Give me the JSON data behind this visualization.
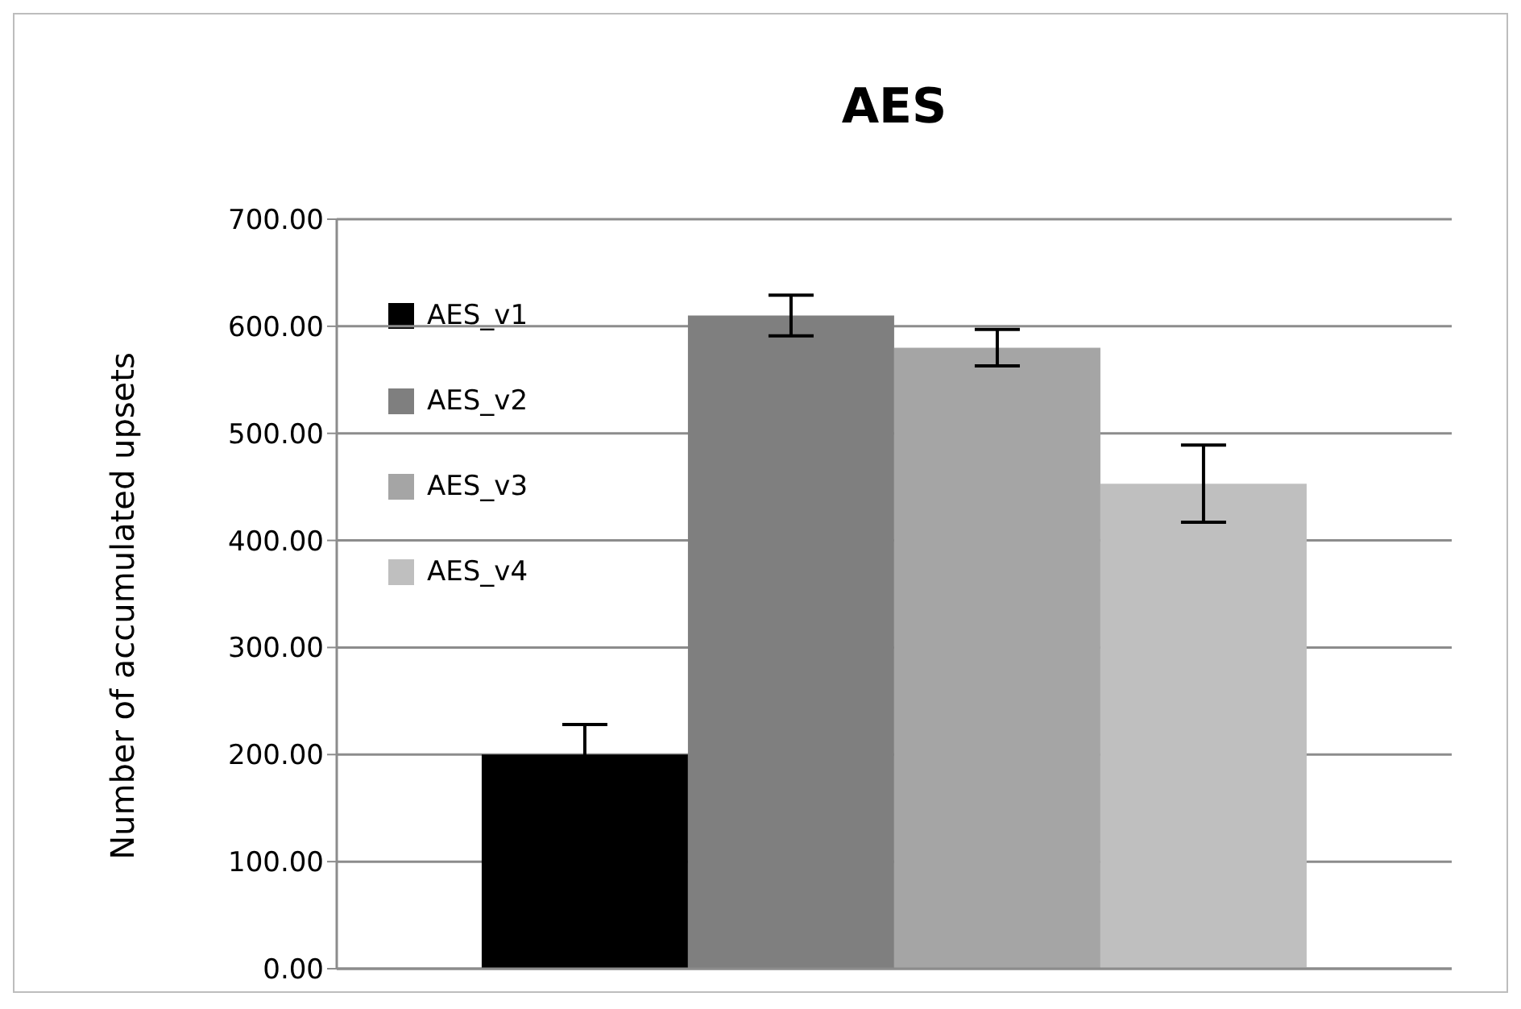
{
  "chart_data": {
    "type": "bar",
    "title": "AES",
    "ylabel": "Number of accumulated upsets",
    "categories": [
      null
    ],
    "series": [
      {
        "name": "AES_v1",
        "color": "#000000",
        "values": [
          200
        ],
        "errors": [
          28
        ]
      },
      {
        "name": "AES_v2",
        "color": "#7f7f7f",
        "values": [
          610
        ],
        "errors": [
          19
        ]
      },
      {
        "name": "AES_v3",
        "color": "#a5a5a5",
        "values": [
          580
        ],
        "errors": [
          17
        ]
      },
      {
        "name": "AES_v4",
        "color": "#bfbfbf",
        "values": [
          453
        ],
        "errors": [
          36
        ]
      }
    ],
    "ylim": [
      0,
      700
    ],
    "yticks": [
      {
        "value": 0,
        "label": "0.00"
      },
      {
        "value": 100,
        "label": "100.00"
      },
      {
        "value": 200,
        "label": "200.00"
      },
      {
        "value": 300,
        "label": "300.00"
      },
      {
        "value": 400,
        "label": "400.00"
      },
      {
        "value": 500,
        "label": "500.00"
      },
      {
        "value": 600,
        "label": "600.00"
      },
      {
        "value": 700,
        "label": "700.00"
      }
    ],
    "grid": "y",
    "legend": "top left",
    "tick_labels": "y"
  }
}
